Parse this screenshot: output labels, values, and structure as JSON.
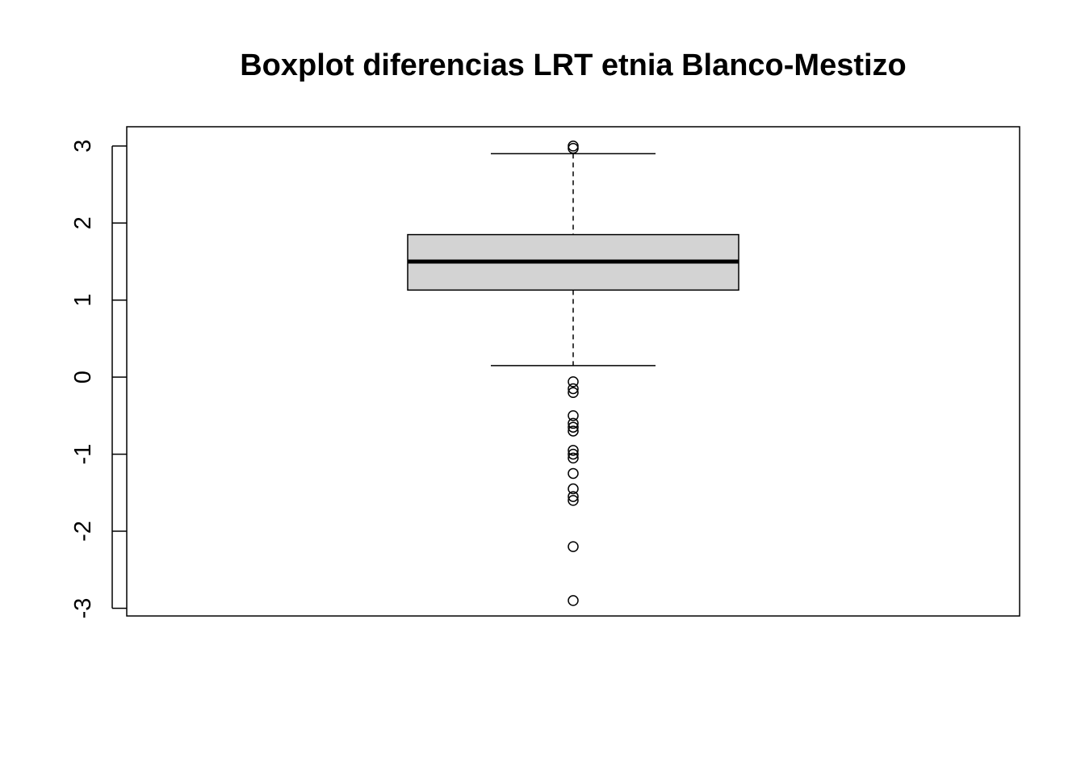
{
  "chart_data": {
    "type": "boxplot",
    "title": "Boxplot diferencias LRT etnia Blanco-Mestizo",
    "xlabel": "",
    "ylabel": "",
    "ylim": [
      -3.1,
      3.25
    ],
    "y_ticks": [
      -3,
      -2,
      -1,
      0,
      1,
      2,
      3
    ],
    "y_tick_labels": [
      "-3",
      "-2",
      "-1",
      "0",
      "1",
      "2",
      "3"
    ],
    "grid": false,
    "legend": "none",
    "box": {
      "lower_whisker": 0.15,
      "q1": 1.13,
      "median": 1.5,
      "q3": 1.85,
      "upper_whisker": 2.9,
      "fill_color": "#d3d3d3"
    },
    "outliers": [
      3.0,
      2.97,
      -0.06,
      -0.15,
      -0.2,
      -0.5,
      -0.6,
      -0.65,
      -0.7,
      -0.95,
      -1.0,
      -1.05,
      -1.25,
      -1.45,
      -1.55,
      -1.6,
      -2.2,
      -2.9
    ]
  }
}
